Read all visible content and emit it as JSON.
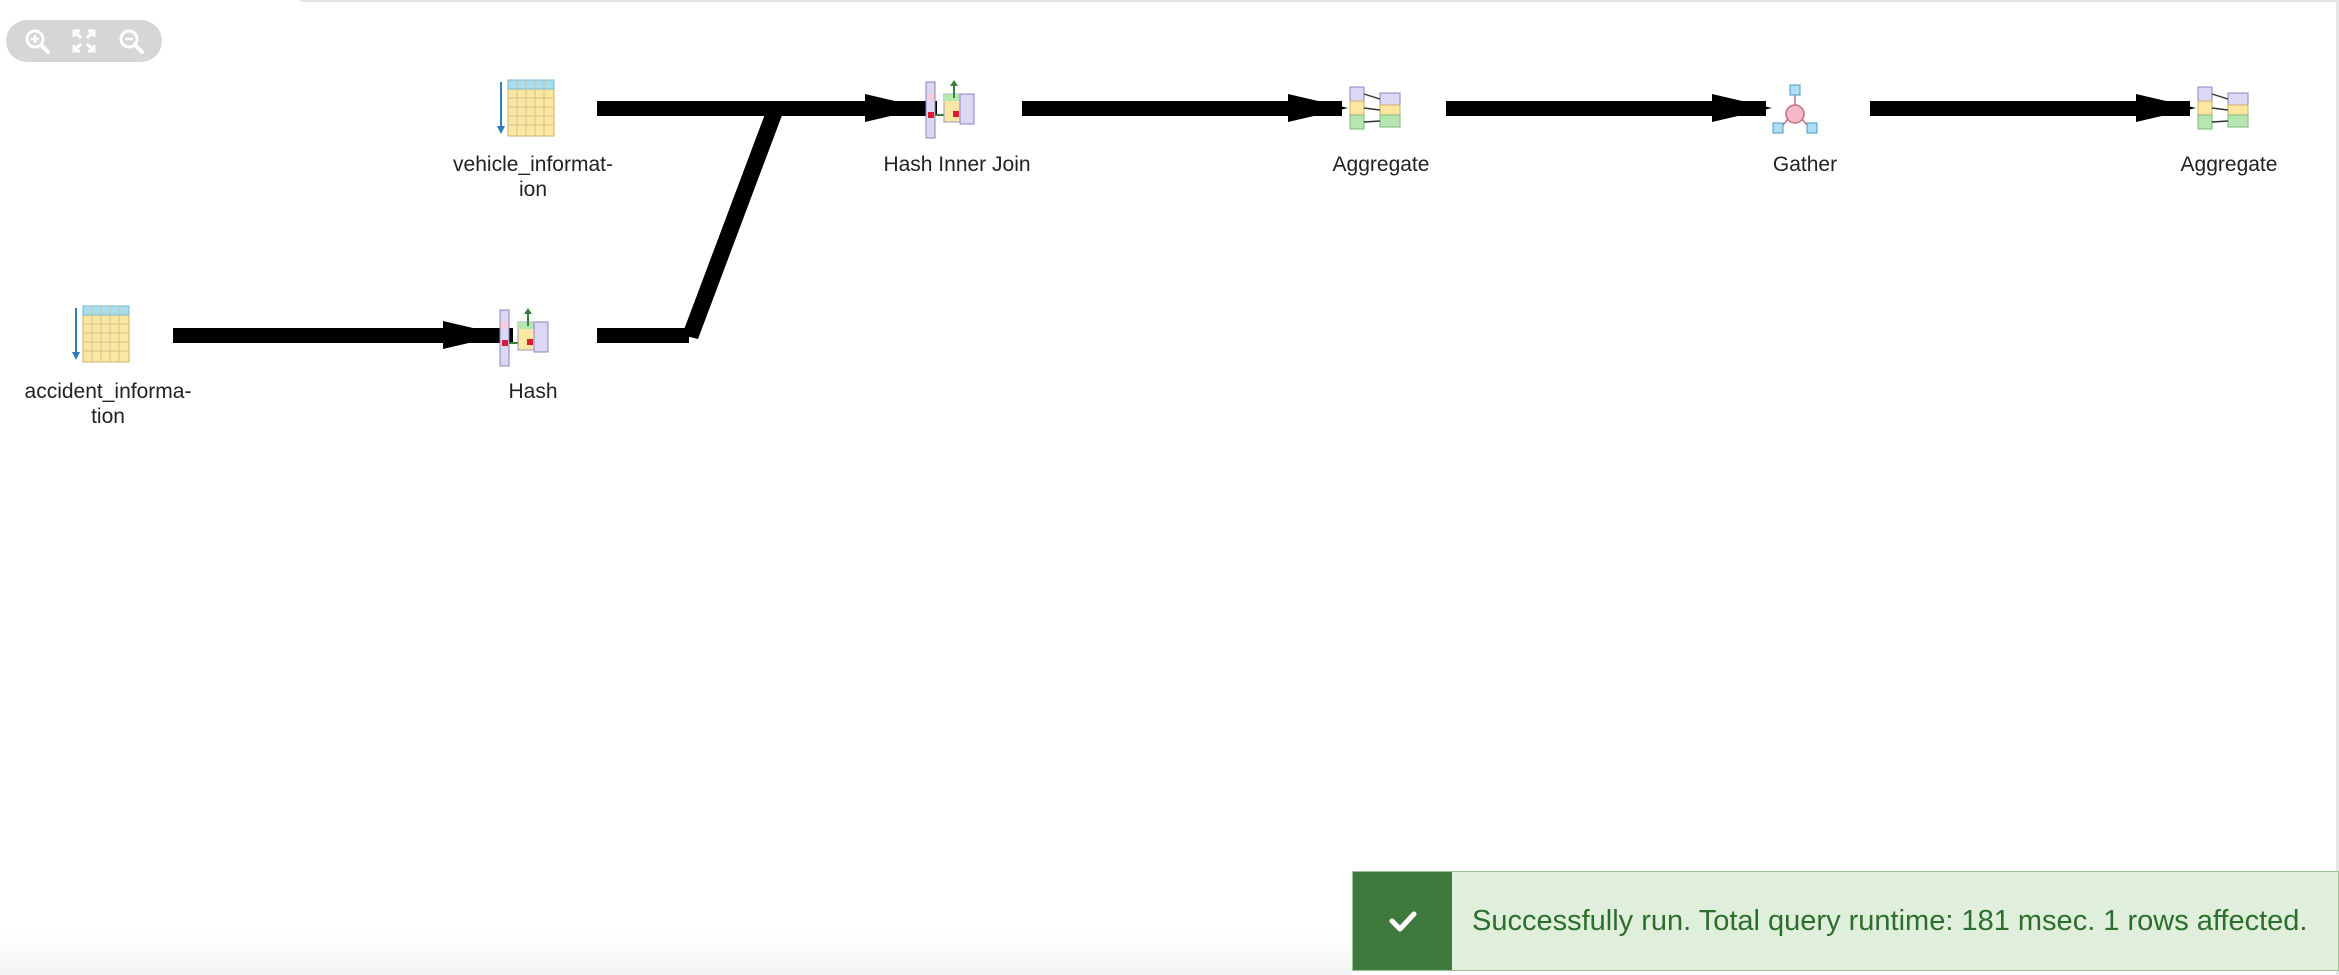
{
  "toolbar": {
    "buttons": [
      {
        "name": "zoom-in-icon"
      },
      {
        "name": "fit-to-screen-icon"
      },
      {
        "name": "zoom-out-icon"
      }
    ]
  },
  "nodes": {
    "vehicle_information": {
      "label": "vehicle_informat-\nion",
      "icon": "table-scan-icon"
    },
    "accident_information": {
      "label": "accident_informa-\ntion",
      "icon": "table-scan-icon"
    },
    "hash": {
      "label": "Hash",
      "icon": "hash-icon"
    },
    "hash_inner_join": {
      "label": "Hash Inner Join",
      "icon": "hash-join-icon"
    },
    "aggregate_1": {
      "label": "Aggregate",
      "icon": "aggregate-icon"
    },
    "gather": {
      "label": "Gather",
      "icon": "gather-icon"
    },
    "aggregate_2": {
      "label": "Aggregate",
      "icon": "aggregate-icon"
    }
  },
  "toast": {
    "status": "success",
    "icon": "checkmark-icon",
    "message": "Successfully run. Total query runtime: 181 msec. 1 rows affected."
  },
  "colors": {
    "toast_bg": "#e0efdb",
    "toast_icon_bg": "#3e7a3e",
    "toast_text": "#2c6e2c",
    "toolbar_bg": "#d6d6d6"
  }
}
